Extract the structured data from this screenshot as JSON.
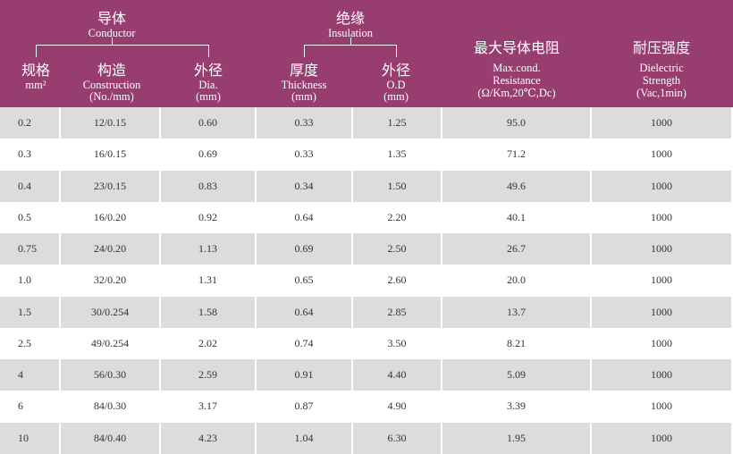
{
  "header": {
    "groups": [
      {
        "zh": "导体",
        "en": "Conductor"
      },
      {
        "zh": "绝缘",
        "en": "Insulation"
      }
    ],
    "columns": [
      [
        "规格",
        "mm²"
      ],
      [
        "构造",
        "Construction",
        "(No./mm)"
      ],
      [
        "外径",
        "Dia.",
        "(mm)"
      ],
      [
        "厚度",
        "Thickness",
        "(mm)"
      ],
      [
        "外径",
        "O.D",
        "(mm)"
      ],
      [
        "最大导体电阻",
        "Max.cond.",
        "Resistance",
        "(Ω/Km,20℃,Dc)"
      ],
      [
        "耐压强度",
        "Dielectric",
        "Strength",
        "(Vac,1min)"
      ]
    ]
  },
  "table": {
    "rows": [
      [
        "0.2",
        "12/0.15",
        "0.60",
        "0.33",
        "1.25",
        "95.0",
        "1000"
      ],
      [
        "0.3",
        "16/0.15",
        "0.69",
        "0.33",
        "1.35",
        "71.2",
        "1000"
      ],
      [
        "0.4",
        "23/0.15",
        "0.83",
        "0.34",
        "1.50",
        "49.6",
        "1000"
      ],
      [
        "0.5",
        "16/0.20",
        "0.92",
        "0.64",
        "2.20",
        "40.1",
        "1000"
      ],
      [
        "0.75",
        "24/0.20",
        "1.13",
        "0.69",
        "2.50",
        "26.7",
        "1000"
      ],
      [
        "1.0",
        "32/0.20",
        "1.31",
        "0.65",
        "2.60",
        "20.0",
        "1000"
      ],
      [
        "1.5",
        "30/0.254",
        "1.58",
        "0.64",
        "2.85",
        "13.7",
        "1000"
      ],
      [
        "2.5",
        "49/0.254",
        "2.02",
        "0.74",
        "3.50",
        "8.21",
        "1000"
      ],
      [
        "4",
        "56/0.30",
        "2.59",
        "0.91",
        "4.40",
        "5.09",
        "1000"
      ],
      [
        "6",
        "84/0.30",
        "3.17",
        "0.87",
        "4.90",
        "3.39",
        "1000"
      ],
      [
        "10",
        "84/0.40",
        "4.23",
        "1.04",
        "6.30",
        "1.95",
        "1000"
      ]
    ]
  }
}
